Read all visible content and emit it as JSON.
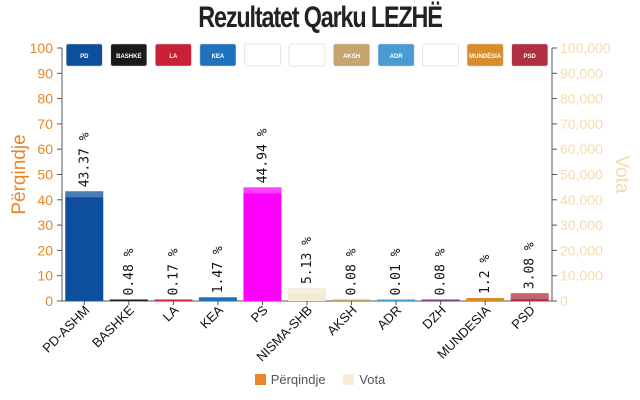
{
  "title": "Rezultatet Qarku LEZHË",
  "chart_data": {
    "type": "bar",
    "title": "Rezultatet Qarku LEZHË",
    "categories": [
      "PD-ASHM",
      "BASHKE",
      "LA",
      "KEA",
      "PS",
      "NISMA-SHB",
      "AKSH",
      "ADR",
      "DZH",
      "MUNDESIA",
      "PSD"
    ],
    "series": [
      {
        "name": "Përqindje",
        "values": [
          43.37,
          0.48,
          0.17,
          1.47,
          44.94,
          5.13,
          0.08,
          0.01,
          0.08,
          1.2,
          3.08
        ],
        "labels": [
          "43.37 %",
          "0.48 %",
          "0.17 %",
          "1.47 %",
          "44.94 %",
          "5.13 %",
          "0.08 %",
          "0.01 %",
          "0.08 %",
          "1.2 %",
          "3.08 %"
        ]
      },
      {
        "name": "Vota"
      }
    ],
    "bar_colors": [
      "#0d4f9c",
      "#1a1a1a",
      "#c91f37",
      "#1e73be",
      "#ff00ff",
      "#f2ead6",
      "#c8a46e",
      "#4a9ad4",
      "#7a3c7a",
      "#d98c2a",
      "#b03040"
    ],
    "logos": [
      "PD",
      "BASHKË",
      "LA",
      "KEA",
      "",
      "",
      "AKSH",
      "ADR",
      "",
      "MUNDËSIA",
      "PSD"
    ],
    "ylabel": "Përqindje",
    "ylabel_right": "Vota",
    "ylim": [
      0,
      100
    ],
    "yticks": [
      "0",
      "10",
      "20",
      "30",
      "40",
      "50",
      "60",
      "70",
      "80",
      "90",
      "100"
    ],
    "ylim_right": [
      0,
      100000
    ],
    "yticks_right": [
      "0",
      "10,000",
      "20,000",
      "30,000",
      "40,000",
      "50,000",
      "60,000",
      "70,000",
      "80,000",
      "90,000",
      "100,000"
    ],
    "colors": {
      "left_axis": "#e8862a",
      "right_axis": "#f3dcae",
      "swatch_vota": "#f7ecd5",
      "swatch_perqindje": "#e8862a"
    },
    "grid": false,
    "legend": "bottom"
  }
}
